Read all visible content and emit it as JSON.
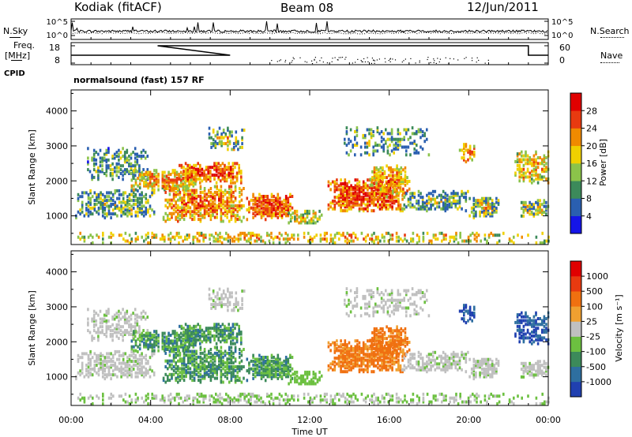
{
  "header": {
    "station": "Kodiak (fitACF)",
    "beam": "Beam 08",
    "date": "12/Jun/2011"
  },
  "left_labels": {
    "nsky": "N.Sky",
    "freq_line1": "Freq.",
    "freq_line2": "[MHz]",
    "cpid": "CPID"
  },
  "right_labels": {
    "nsearch": "N.Search",
    "nave": "Nave"
  },
  "cpid_text": "normalsound (fast) 157 RF",
  "chart_data": [
    {
      "type": "line",
      "name": "noise",
      "series_labels": [
        "N.Sky",
        "N.Search"
      ],
      "yticks_left": [
        "10^5",
        "10^0"
      ],
      "yticks_right": [
        "10^5",
        "10^0"
      ]
    },
    {
      "type": "line",
      "name": "freq-nave",
      "yticks_left": [
        "18",
        "8"
      ],
      "yticks_right": [
        "60",
        "0"
      ],
      "freq_steps": [
        [
          0,
          8.0,
          0
        ],
        [
          4.35,
          4.75,
          1
        ],
        [
          19.3,
          20.8,
          1
        ],
        [
          22.2,
          23.0,
          1
        ],
        [
          23.0,
          24.0,
          0
        ]
      ]
    },
    {
      "type": "heatmap",
      "name": "power",
      "ylabel": "Slant Range [km]",
      "yticks": [
        "1000",
        "2000",
        "3000",
        "4000"
      ],
      "ytick_values": [
        1000,
        2000,
        3000,
        4000
      ],
      "ylim": [
        180,
        4600
      ],
      "colorbar_label": "Power [dB]",
      "colorbar_ticks": [
        "4",
        "8",
        "12",
        "16",
        "20",
        "24",
        "28"
      ],
      "colors": [
        "#1515e8",
        "#2a5fb0",
        "#3c8a5a",
        "#8bc34a",
        "#f0d000",
        "#f08a00",
        "#e83a10",
        "#e00000"
      ]
    },
    {
      "type": "heatmap",
      "name": "velocity",
      "ylabel": "Slant Range [km]",
      "yticks": [
        "1000",
        "2000",
        "3000",
        "4000"
      ],
      "ytick_values": [
        1000,
        2000,
        3000,
        4000
      ],
      "ylim": [
        180,
        4600
      ],
      "colorbar_label": "Velocity [m s⁻¹]",
      "colorbar_ticks": [
        "1000",
        "500",
        "100",
        "25",
        "-25",
        "-100",
        "-500",
        "-1000"
      ],
      "colors": [
        "#2040b0",
        "#2e6fa0",
        "#3c8a5a",
        "#6cc040",
        "#c0c0c0",
        "#f0a030",
        "#f07010",
        "#e83a10",
        "#e00000"
      ]
    }
  ],
  "xaxis": {
    "xlabel": "Time UT",
    "xticks": [
      "00:00",
      "04:00",
      "08:00",
      "12:00",
      "16:00",
      "20:00",
      "00:00"
    ],
    "xlim_hours": [
      0,
      24
    ]
  }
}
